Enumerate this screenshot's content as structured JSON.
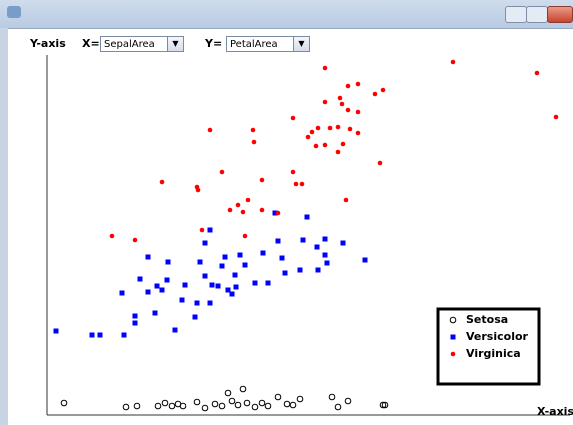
{
  "toolbar": {
    "y_axis_label": "Y-axis",
    "x_selector_label": "X=",
    "x_selection": "SepalArea",
    "y_selector_label": "Y=",
    "y_selection": "PetalArea"
  },
  "chart_data": {
    "type": "scatter",
    "x_label": "X-axis",
    "xlim": [
      47,
      570
    ],
    "ylim": [
      0,
      360
    ],
    "series": [
      {
        "name": "Setosa",
        "color": "#000000",
        "marker": "circle",
        "x": [
          64,
          126,
          137,
          158,
          165,
          172,
          178,
          183,
          197,
          205,
          215,
          222,
          228,
          232,
          238,
          243,
          247,
          255,
          262,
          268,
          278,
          287,
          293,
          300,
          332,
          338,
          348,
          383,
          385
        ],
        "values": [
          12,
          8,
          9,
          9,
          12,
          9,
          11,
          9,
          13,
          7,
          11,
          9,
          22,
          14,
          10,
          26,
          12,
          8,
          12,
          9,
          18,
          11,
          10,
          16,
          18,
          8,
          14,
          10,
          10
        ]
      },
      {
        "name": "Versicolor",
        "color": "#0000ff",
        "marker": "square",
        "x": [
          56,
          92,
          100,
          124,
          122,
          135,
          135,
          140,
          148,
          155,
          157,
          162,
          167,
          175,
          182,
          185,
          195,
          197,
          200,
          205,
          205,
          210,
          210,
          212,
          218,
          222,
          225,
          228,
          232,
          236,
          240,
          245,
          255,
          263,
          268,
          275,
          278,
          282,
          285,
          300,
          303,
          307,
          317,
          318,
          325,
          325,
          327,
          343,
          365,
          148,
          168,
          235
        ],
        "values": [
          84,
          80,
          80,
          80,
          122,
          99,
          92,
          136,
          123,
          102,
          129,
          125,
          135,
          85,
          115,
          130,
          98,
          112,
          153,
          172,
          139,
          185,
          112,
          130,
          129,
          149,
          158,
          125,
          121,
          128,
          160,
          150,
          132,
          162,
          132,
          202,
          174,
          157,
          142,
          145,
          175,
          198,
          168,
          145,
          176,
          160,
          152,
          172,
          155,
          158,
          153,
          140
        ]
      },
      {
        "name": "Virginica",
        "color": "#ff0000",
        "marker": "dot",
        "x": [
          112,
          135,
          162,
          197,
          198,
          202,
          210,
          222,
          230,
          238,
          243,
          245,
          248,
          253,
          254,
          262,
          262,
          278,
          293,
          293,
          296,
          302,
          308,
          312,
          316,
          318,
          325,
          325,
          325,
          330,
          338,
          338,
          340,
          342,
          343,
          346,
          348,
          348,
          350,
          358,
          358,
          358,
          375,
          380,
          383,
          453,
          537,
          556
        ],
        "values": [
          179,
          175,
          233,
          228,
          225,
          185,
          285,
          243,
          205,
          210,
          203,
          179,
          215,
          285,
          273,
          235,
          205,
          202,
          297,
          243,
          231,
          231,
          278,
          283,
          269,
          287,
          347,
          313,
          270,
          287,
          288,
          263,
          317,
          311,
          271,
          215,
          329,
          305,
          286,
          331,
          303,
          282,
          321,
          252,
          325,
          353,
          342,
          298
        ]
      }
    ]
  }
}
